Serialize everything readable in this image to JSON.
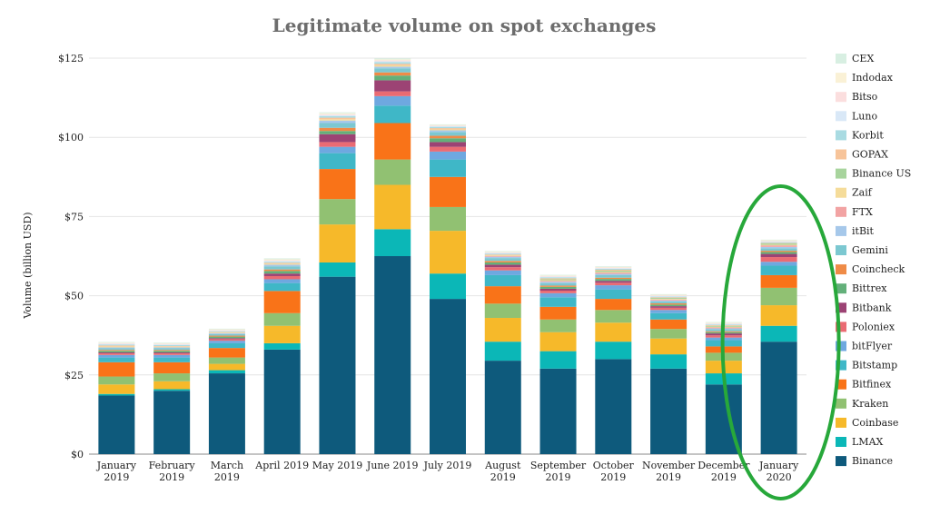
{
  "chart_data": {
    "type": "bar",
    "stacked": true,
    "title": "Legitimate volume on spot exchanges",
    "xlabel": "",
    "ylabel": "Volume (billion USD)",
    "ylim": [
      0,
      125
    ],
    "yticks": [
      0,
      25,
      50,
      75,
      100,
      125
    ],
    "ytick_labels": [
      "$0",
      "$25",
      "$50",
      "$75",
      "$100",
      "$125"
    ],
    "grid": true,
    "legend_position": "right",
    "categories": [
      [
        "January",
        "2019"
      ],
      [
        "February",
        "2019"
      ],
      [
        "March",
        "2019"
      ],
      [
        "April 2019"
      ],
      [
        "May 2019"
      ],
      [
        "June 2019"
      ],
      [
        "July 2019"
      ],
      [
        "August",
        "2019"
      ],
      [
        "September",
        "2019"
      ],
      [
        "October",
        "2019"
      ],
      [
        "November",
        "2019"
      ],
      [
        "December",
        "2019"
      ],
      [
        "January",
        "2020"
      ]
    ],
    "series": [
      {
        "name": "Binance",
        "color": "#0e5a7c",
        "values": [
          18.5,
          20.0,
          25.5,
          33.0,
          56.0,
          62.5,
          49.0,
          29.5,
          27.0,
          30.0,
          27.0,
          22.0,
          35.5
        ]
      },
      {
        "name": "LMAX",
        "color": "#0bb7b7",
        "values": [
          0.5,
          0.5,
          1.0,
          2.0,
          4.5,
          8.5,
          8.0,
          6.0,
          5.5,
          5.5,
          4.5,
          3.5,
          5.0
        ]
      },
      {
        "name": "Coinbase",
        "color": "#f6b92a",
        "values": [
          3.0,
          2.5,
          2.0,
          5.5,
          12.0,
          14.0,
          13.5,
          7.5,
          6.0,
          6.0,
          5.0,
          4.0,
          6.5
        ]
      },
      {
        "name": "Kraken",
        "color": "#91c172",
        "values": [
          2.5,
          2.5,
          2.0,
          4.0,
          8.0,
          8.0,
          7.5,
          4.5,
          4.0,
          4.0,
          3.0,
          2.5,
          5.5
        ]
      },
      {
        "name": "Bitfinex",
        "color": "#f97318",
        "values": [
          4.5,
          3.5,
          3.0,
          7.0,
          9.5,
          11.5,
          9.5,
          5.5,
          4.0,
          3.5,
          3.0,
          2.0,
          4.0
        ]
      },
      {
        "name": "Bitstamp",
        "color": "#3fb7c7",
        "values": [
          1.5,
          1.5,
          1.5,
          2.5,
          5.0,
          5.5,
          5.5,
          3.5,
          3.0,
          3.0,
          2.0,
          2.0,
          3.0
        ]
      },
      {
        "name": "bitFlyer",
        "color": "#6ea8e0",
        "values": [
          0.8,
          0.8,
          0.8,
          1.2,
          2.0,
          3.0,
          2.5,
          1.5,
          1.3,
          1.3,
          1.0,
          0.8,
          1.2
        ]
      },
      {
        "name": "Poloniex",
        "color": "#ea6b73",
        "values": [
          0.5,
          0.5,
          0.5,
          1.0,
          1.5,
          1.5,
          1.5,
          1.0,
          0.8,
          0.8,
          0.7,
          0.7,
          1.5
        ]
      },
      {
        "name": "Bitbank",
        "color": "#9c4374",
        "values": [
          0.3,
          0.3,
          0.3,
          0.8,
          2.5,
          3.5,
          1.5,
          0.8,
          0.6,
          0.6,
          0.5,
          0.6,
          1.0
        ]
      },
      {
        "name": "Bittrex",
        "color": "#63b07a",
        "values": [
          0.5,
          0.5,
          0.5,
          0.8,
          1.0,
          1.5,
          1.2,
          0.7,
          0.6,
          0.6,
          0.5,
          0.4,
          0.6
        ]
      },
      {
        "name": "Coincheck",
        "color": "#ef8b47",
        "values": [
          0.3,
          0.3,
          0.3,
          0.5,
          1.0,
          1.0,
          0.8,
          0.5,
          0.4,
          0.4,
          0.4,
          0.3,
          0.4
        ]
      },
      {
        "name": "Gemini",
        "color": "#7cc8d1",
        "values": [
          0.5,
          0.5,
          0.5,
          1.0,
          1.5,
          1.3,
          1.2,
          0.9,
          0.8,
          0.8,
          0.6,
          0.6,
          0.8
        ]
      },
      {
        "name": "itBit",
        "color": "#a6c8ea",
        "values": [
          0.3,
          0.3,
          0.3,
          0.5,
          0.8,
          0.5,
          0.5,
          0.4,
          0.4,
          0.4,
          0.3,
          0.3,
          0.4
        ]
      },
      {
        "name": "FTX",
        "color": "#f2a3a3",
        "values": [
          0.0,
          0.0,
          0.0,
          0.0,
          0.0,
          0.0,
          0.0,
          0.2,
          0.3,
          0.4,
          0.3,
          0.3,
          0.5
        ]
      },
      {
        "name": "Zaif",
        "color": "#f5dc9a",
        "values": [
          0.3,
          0.2,
          0.2,
          0.3,
          0.4,
          0.4,
          0.3,
          0.2,
          0.2,
          0.2,
          0.2,
          0.2,
          0.2
        ]
      },
      {
        "name": "Binance US",
        "color": "#a8d49d",
        "values": [
          0.0,
          0.0,
          0.0,
          0.0,
          0.0,
          0.0,
          0.0,
          0.0,
          0.3,
          0.4,
          0.3,
          0.3,
          0.4
        ]
      },
      {
        "name": "GOPAX",
        "color": "#f7c49a",
        "values": [
          0.3,
          0.2,
          0.2,
          0.3,
          0.5,
          0.5,
          0.4,
          0.3,
          0.3,
          0.3,
          0.2,
          0.2,
          0.2
        ]
      },
      {
        "name": "Korbit",
        "color": "#a9dbe2",
        "values": [
          0.3,
          0.3,
          0.2,
          0.3,
          0.5,
          0.5,
          0.4,
          0.3,
          0.3,
          0.3,
          0.2,
          0.2,
          0.2
        ]
      },
      {
        "name": "Luno",
        "color": "#d9e8f7",
        "values": [
          0.2,
          0.2,
          0.2,
          0.3,
          0.3,
          0.3,
          0.2,
          0.2,
          0.2,
          0.2,
          0.2,
          0.2,
          0.2
        ]
      },
      {
        "name": "Bitso",
        "color": "#fbdede",
        "values": [
          0.2,
          0.2,
          0.2,
          0.2,
          0.3,
          0.3,
          0.2,
          0.2,
          0.2,
          0.2,
          0.2,
          0.2,
          0.2
        ]
      },
      {
        "name": "Indodax",
        "color": "#faf1d6",
        "values": [
          0.2,
          0.2,
          0.2,
          0.3,
          0.3,
          0.3,
          0.2,
          0.2,
          0.2,
          0.2,
          0.2,
          0.2,
          0.2
        ]
      },
      {
        "name": "CEX",
        "color": "#d8efe2",
        "values": [
          0.2,
          0.2,
          0.2,
          0.3,
          0.3,
          0.3,
          0.2,
          0.2,
          0.2,
          0.2,
          0.2,
          0.2,
          0.2
        ]
      }
    ],
    "highlight": {
      "category_index": 12,
      "shape": "ellipse",
      "color": "#27a83a"
    }
  }
}
